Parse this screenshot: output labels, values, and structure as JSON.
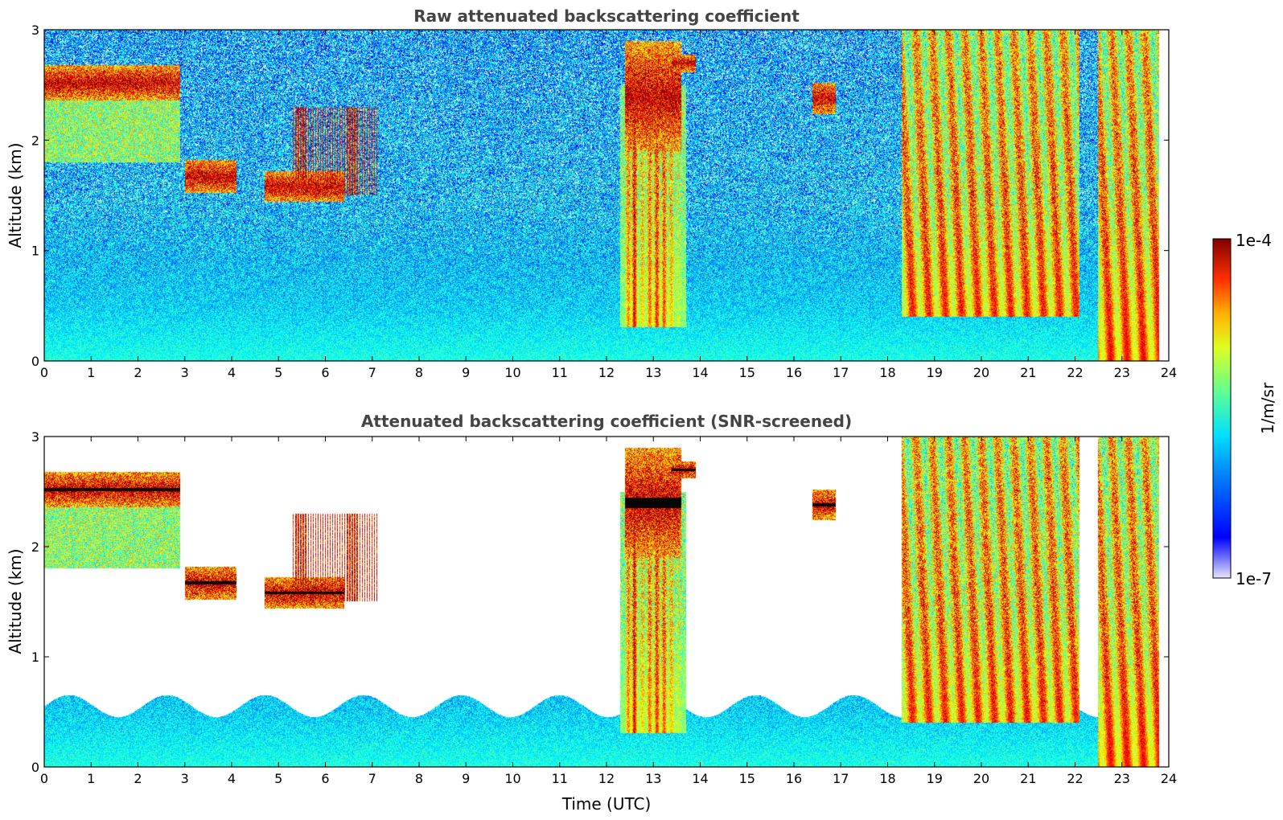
{
  "chart_data": [
    {
      "type": "heatmap",
      "title": "Raw attenuated backscattering coefficient",
      "xlabel": "",
      "ylabel": "Altitude (km)",
      "xlim": [
        0,
        24
      ],
      "ylim": [
        0,
        3
      ],
      "xticks": [
        "0",
        "1",
        "2",
        "3",
        "4",
        "5",
        "6",
        "7",
        "8",
        "9",
        "10",
        "11",
        "12",
        "13",
        "14",
        "15",
        "16",
        "17",
        "18",
        "19",
        "20",
        "21",
        "22",
        "23",
        "24"
      ],
      "yticks": [
        "0",
        "1",
        "2",
        "3"
      ],
      "screened": false
    },
    {
      "type": "heatmap",
      "title": "Attenuated backscattering coefficient (SNR-screened)",
      "xlabel": "Time (UTC)",
      "ylabel": "Altitude (km)",
      "xlim": [
        0,
        24
      ],
      "ylim": [
        0,
        3
      ],
      "xticks": [
        "0",
        "1",
        "2",
        "3",
        "4",
        "5",
        "6",
        "7",
        "8",
        "9",
        "10",
        "11",
        "12",
        "13",
        "14",
        "15",
        "16",
        "17",
        "18",
        "19",
        "20",
        "21",
        "22",
        "23",
        "24"
      ],
      "yticks": [
        "0",
        "1",
        "2",
        "3"
      ],
      "screened": true
    }
  ],
  "colorbar": {
    "label": "1/m/sr",
    "max_label": "1e-4",
    "min_label": "1e-7",
    "scale": "log",
    "colormap": "jet"
  },
  "features": {
    "cloud_layers": [
      {
        "t0": 0.0,
        "t1": 2.9,
        "alt": 2.52,
        "thick": 0.16
      },
      {
        "t0": 3.0,
        "t1": 4.1,
        "alt": 1.67,
        "thick": 0.15
      },
      {
        "t0": 4.7,
        "t1": 6.4,
        "alt": 1.58,
        "thick": 0.14
      },
      {
        "t0": 12.4,
        "t1": 13.6,
        "alt": 2.4,
        "thick": 0.5
      },
      {
        "t0": 16.4,
        "t1": 16.9,
        "alt": 2.38,
        "thick": 0.14
      },
      {
        "t0": 13.4,
        "t1": 13.9,
        "alt": 2.7,
        "thick": 0.08
      }
    ],
    "aerosol_plumes": [
      {
        "t0": 18.3,
        "t1": 22.1,
        "top": 3.0,
        "bottom": 0.4
      },
      {
        "t0": 22.5,
        "t1": 23.8,
        "top": 3.0,
        "bottom": 0.0
      }
    ]
  }
}
